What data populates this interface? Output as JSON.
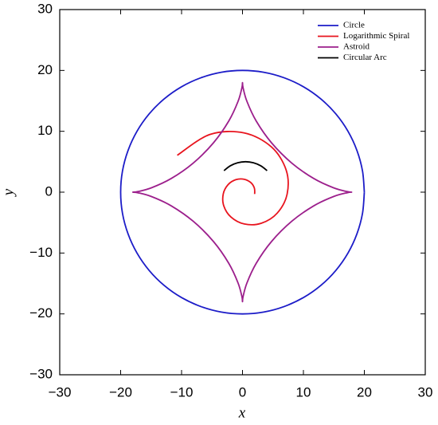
{
  "chart_data": {
    "type": "line",
    "xlabel": "x",
    "ylabel": "y",
    "xlim": [
      -30,
      30
    ],
    "ylim": [
      -30,
      30
    ],
    "xticks": [
      {
        "value": -30,
        "label": "−30"
      },
      {
        "value": -20,
        "label": "−20"
      },
      {
        "value": -10,
        "label": "−10"
      },
      0,
      10,
      20,
      30
    ],
    "yticks": [
      {
        "value": -30,
        "label": "−30"
      },
      {
        "value": -20,
        "label": "−20"
      },
      {
        "value": -10,
        "label": "−10"
      },
      0,
      10,
      20,
      30
    ],
    "legend": "upper right",
    "series": [
      {
        "name": "Circle",
        "color": "#1c1cc8",
        "x": [
          20,
          19.7,
          18.79,
          17.32,
          15.32,
          12.86,
          10,
          6.84,
          3.47,
          0,
          -3.47,
          -6.84,
          -10,
          -12.86,
          -15.32,
          -17.32,
          -18.79,
          -19.7,
          -20,
          -19.7,
          -18.79,
          -17.32,
          -15.32,
          -12.86,
          -10,
          -6.84,
          -3.47,
          0,
          3.47,
          6.84,
          10,
          12.86,
          15.32,
          17.32,
          18.79,
          19.7,
          20
        ],
        "y": [
          0,
          3.47,
          6.84,
          10,
          12.86,
          15.32,
          17.32,
          18.79,
          19.7,
          20,
          19.7,
          18.79,
          17.32,
          15.32,
          12.86,
          10,
          6.84,
          3.47,
          0,
          -3.47,
          -6.84,
          -10,
          -12.86,
          -15.32,
          -17.32,
          -18.79,
          -19.7,
          -20,
          -19.7,
          -18.79,
          -17.32,
          -15.32,
          -12.86,
          -10,
          -6.84,
          -3.47,
          0
        ]
      },
      {
        "name": "Logarithmic Spiral",
        "color": "#e8141e",
        "x": [
          2.0,
          1.95,
          1.38,
          0.3,
          -1.07,
          -2.36,
          -3.16,
          -3.07,
          -1.89,
          0.3,
          3.08,
          5.71,
          7.33,
          7.16,
          4.76,
          0.3,
          -5.35,
          -10.71
        ],
        "y": [
          -0.3,
          0.66,
          1.56,
          2.12,
          2.06,
          1.24,
          -0.3,
          -2.25,
          -4.09,
          -5.23,
          -5.11,
          -3.43,
          -0.3,
          3.66,
          7.42,
          9.73,
          9.48,
          6.06
        ]
      },
      {
        "name": "Astroid",
        "color": "#9c1f8c",
        "x": [
          18,
          17.19,
          14.94,
          11.69,
          8.09,
          4.78,
          2.25,
          0.72,
          0.09,
          0,
          -0.09,
          -0.72,
          -2.25,
          -4.78,
          -8.09,
          -11.69,
          -14.94,
          -17.19,
          -18,
          -17.19,
          -14.94,
          -11.69,
          -8.09,
          -4.78,
          -2.25,
          -0.72,
          -0.09,
          0,
          0.09,
          0.72,
          2.25,
          4.78,
          8.09,
          11.69,
          14.94,
          17.19,
          18
        ],
        "y": [
          0,
          0.09,
          0.72,
          2.25,
          4.78,
          8.09,
          11.69,
          14.94,
          17.19,
          18,
          17.19,
          14.94,
          11.69,
          8.09,
          4.78,
          2.25,
          0.72,
          0.09,
          0,
          -0.09,
          -0.72,
          -2.25,
          -4.78,
          -8.09,
          -11.69,
          -14.94,
          -17.19,
          -18,
          -17.19,
          -14.94,
          -11.69,
          -8.09,
          -4.78,
          -2.25,
          -0.72,
          -0.09,
          0
        ]
      },
      {
        "name": "Circular Arc",
        "color": "#000000",
        "x": [
          4.04,
          3.0,
          1.79,
          0.5,
          -0.79,
          -2.0,
          -3.04
        ],
        "y": [
          3.54,
          4.33,
          4.83,
          5,
          4.83,
          4.33,
          3.54
        ]
      }
    ]
  }
}
